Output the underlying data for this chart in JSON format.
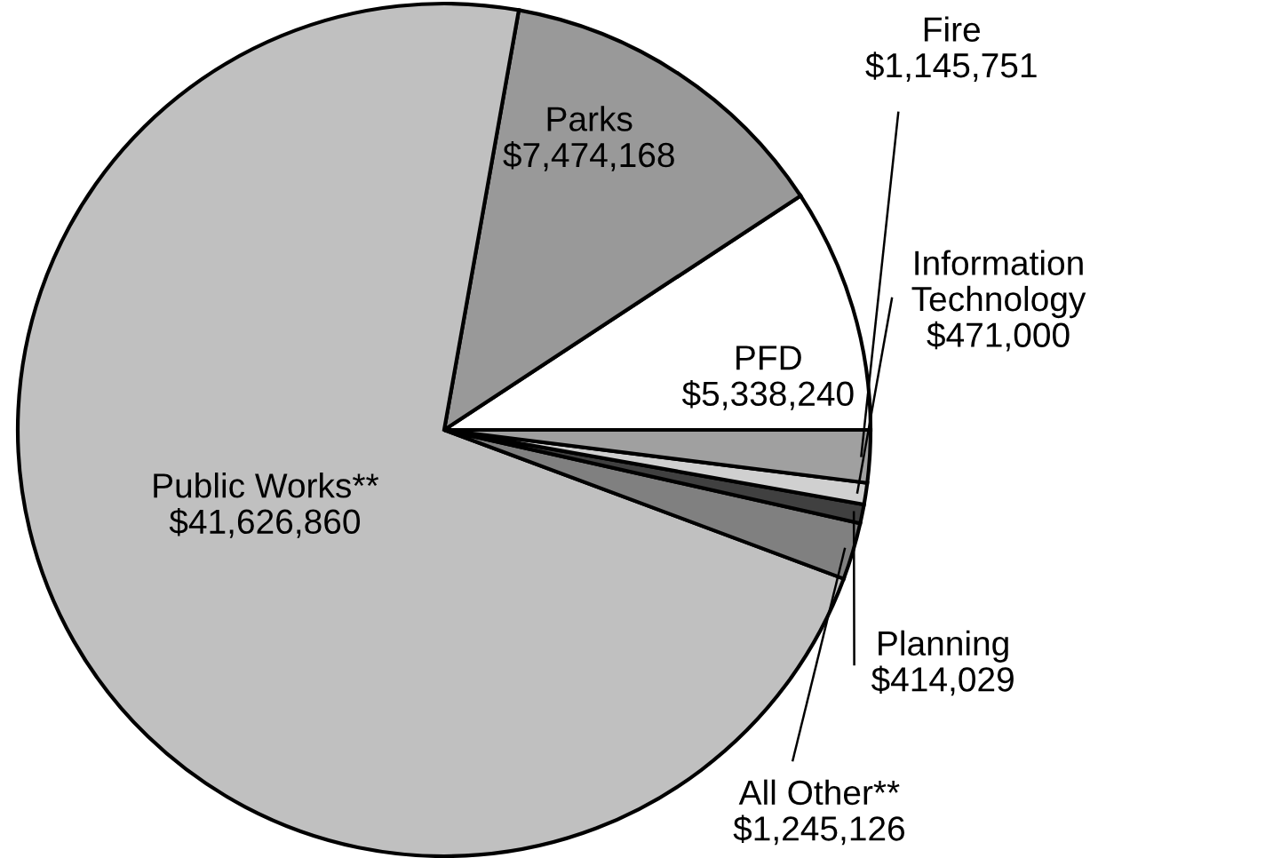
{
  "chart_data": {
    "type": "pie",
    "categories": [
      "PFD",
      "Parks",
      "Public Works**",
      "All Other**",
      "Planning",
      "Information Technology",
      "Fire"
    ],
    "values": [
      5338240,
      7474168,
      41626860,
      1245126,
      414029,
      471000,
      1145751
    ],
    "value_labels": [
      "$5,338,240",
      "$7,474,168",
      "$41,626,860",
      "$1,245,126",
      "$414,029",
      "$471,000",
      "$1,145,751"
    ],
    "colors": [
      "#ffffff",
      "#999999",
      "#c0c0c0",
      "#808080",
      "#404040",
      "#d0d0d0",
      "#a0a0a0"
    ]
  }
}
